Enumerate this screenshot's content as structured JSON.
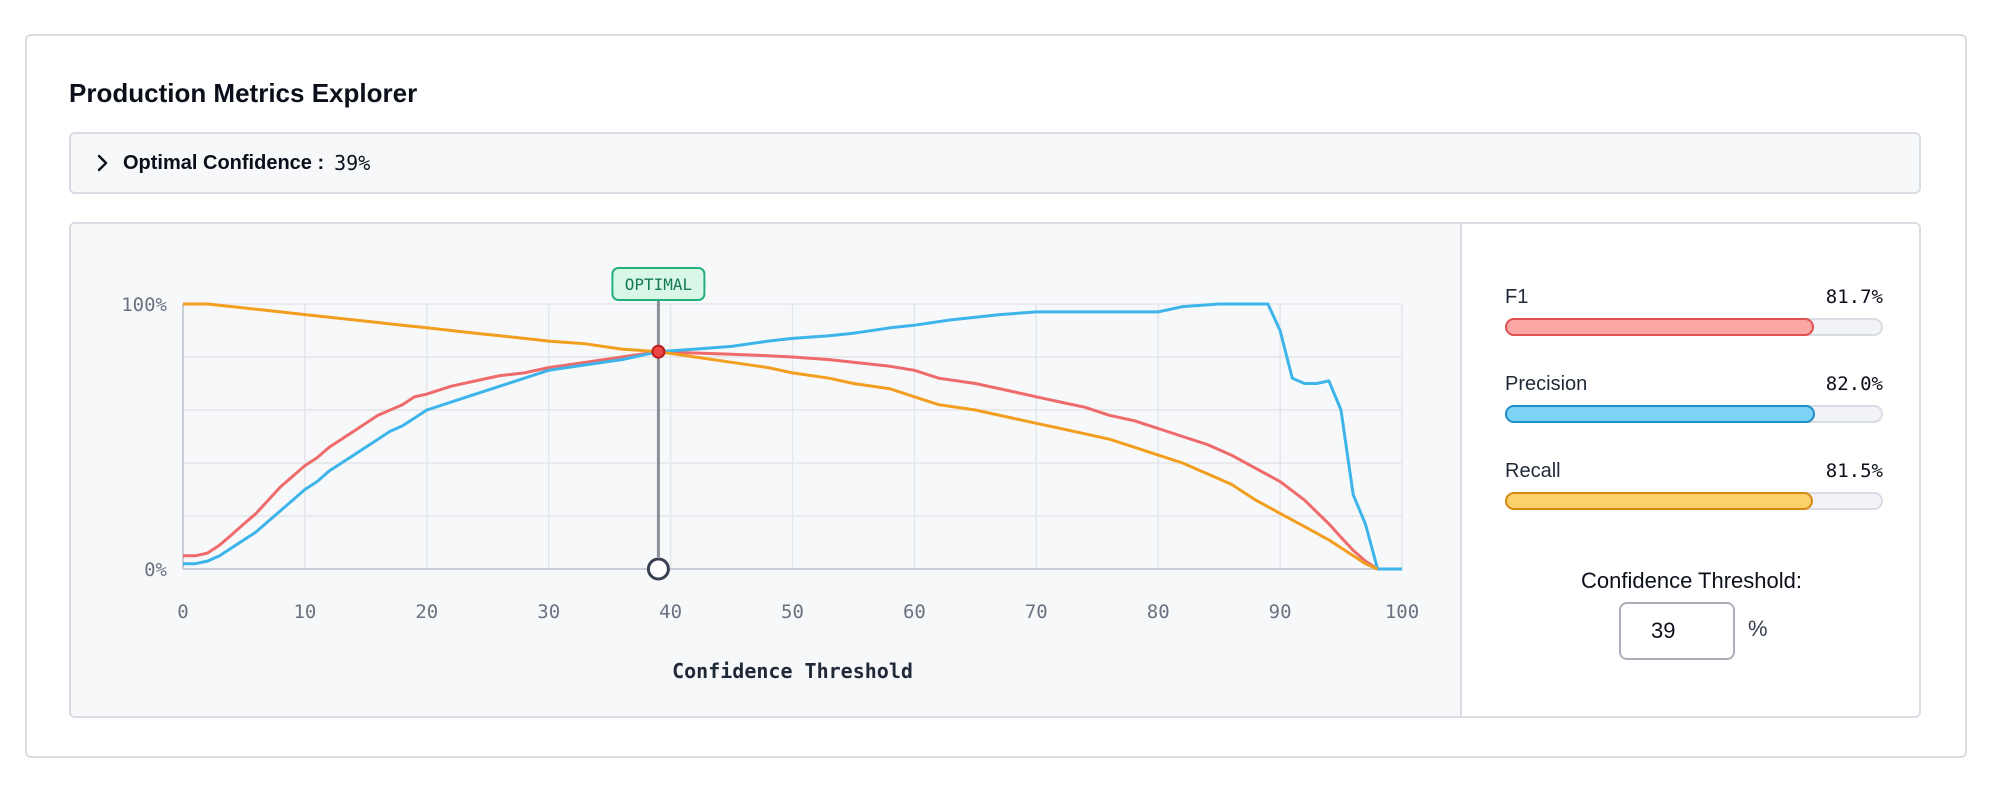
{
  "header": {
    "title": "Production Metrics Explorer"
  },
  "summary": {
    "label": "Optimal Confidence :",
    "value": "39%",
    "icon": "chevron-right-icon"
  },
  "chart_data": {
    "type": "line",
    "xlabel": "Confidence Threshold",
    "ylabel": "",
    "x_ticks": [
      "0",
      "10",
      "20",
      "30",
      "40",
      "50",
      "60",
      "70",
      "80",
      "90",
      "100"
    ],
    "y_ticks": [
      "0%",
      "100%"
    ],
    "xlim": [
      0,
      100
    ],
    "ylim": [
      0,
      1
    ],
    "optimal_label": "OPTIMAL",
    "optimal_x": 39,
    "optimal_y": 0.82,
    "series": [
      {
        "key": "f1",
        "color": "#ef6b6b",
        "points": [
          [
            0,
            0.05
          ],
          [
            1,
            0.05
          ],
          [
            2,
            0.06
          ],
          [
            3,
            0.09
          ],
          [
            4,
            0.13
          ],
          [
            5,
            0.17
          ],
          [
            6,
            0.21
          ],
          [
            7,
            0.26
          ],
          [
            8,
            0.31
          ],
          [
            9,
            0.35
          ],
          [
            10,
            0.39
          ],
          [
            11,
            0.42
          ],
          [
            12,
            0.46
          ],
          [
            13,
            0.49
          ],
          [
            14,
            0.52
          ],
          [
            15,
            0.55
          ],
          [
            16,
            0.58
          ],
          [
            17,
            0.6
          ],
          [
            18,
            0.62
          ],
          [
            19,
            0.65
          ],
          [
            20,
            0.66
          ],
          [
            22,
            0.69
          ],
          [
            24,
            0.71
          ],
          [
            26,
            0.73
          ],
          [
            28,
            0.74
          ],
          [
            30,
            0.76
          ],
          [
            33,
            0.78
          ],
          [
            36,
            0.8
          ],
          [
            39,
            0.82
          ],
          [
            42,
            0.815
          ],
          [
            45,
            0.81
          ],
          [
            48,
            0.805
          ],
          [
            50,
            0.8
          ],
          [
            53,
            0.79
          ],
          [
            55,
            0.78
          ],
          [
            58,
            0.765
          ],
          [
            60,
            0.75
          ],
          [
            62,
            0.72
          ],
          [
            65,
            0.7
          ],
          [
            68,
            0.67
          ],
          [
            70,
            0.65
          ],
          [
            72,
            0.63
          ],
          [
            74,
            0.61
          ],
          [
            76,
            0.58
          ],
          [
            78,
            0.56
          ],
          [
            80,
            0.53
          ],
          [
            82,
            0.5
          ],
          [
            84,
            0.47
          ],
          [
            86,
            0.43
          ],
          [
            88,
            0.38
          ],
          [
            90,
            0.33
          ],
          [
            92,
            0.26
          ],
          [
            94,
            0.17
          ],
          [
            95,
            0.12
          ],
          [
            96,
            0.07
          ],
          [
            97,
            0.03
          ],
          [
            98,
            0.0
          ]
        ]
      },
      {
        "key": "precision",
        "color": "#3db5ea",
        "points": [
          [
            0,
            0.02
          ],
          [
            1,
            0.02
          ],
          [
            2,
            0.03
          ],
          [
            3,
            0.05
          ],
          [
            4,
            0.08
          ],
          [
            5,
            0.11
          ],
          [
            6,
            0.14
          ],
          [
            7,
            0.18
          ],
          [
            8,
            0.22
          ],
          [
            9,
            0.26
          ],
          [
            10,
            0.3
          ],
          [
            11,
            0.33
          ],
          [
            12,
            0.37
          ],
          [
            13,
            0.4
          ],
          [
            14,
            0.43
          ],
          [
            15,
            0.46
          ],
          [
            16,
            0.49
          ],
          [
            17,
            0.52
          ],
          [
            18,
            0.54
          ],
          [
            19,
            0.57
          ],
          [
            20,
            0.6
          ],
          [
            22,
            0.63
          ],
          [
            24,
            0.66
          ],
          [
            26,
            0.69
          ],
          [
            28,
            0.72
          ],
          [
            30,
            0.75
          ],
          [
            33,
            0.77
          ],
          [
            36,
            0.79
          ],
          [
            39,
            0.82
          ],
          [
            42,
            0.83
          ],
          [
            45,
            0.84
          ],
          [
            48,
            0.86
          ],
          [
            50,
            0.87
          ],
          [
            53,
            0.88
          ],
          [
            55,
            0.89
          ],
          [
            58,
            0.91
          ],
          [
            60,
            0.92
          ],
          [
            63,
            0.94
          ],
          [
            65,
            0.95
          ],
          [
            67,
            0.96
          ],
          [
            70,
            0.97
          ],
          [
            75,
            0.97
          ],
          [
            80,
            0.97
          ],
          [
            82,
            0.99
          ],
          [
            85,
            1.0
          ],
          [
            88,
            1.0
          ],
          [
            89,
            1.0
          ],
          [
            90,
            0.9
          ],
          [
            91,
            0.72
          ],
          [
            92,
            0.7
          ],
          [
            93,
            0.7
          ],
          [
            94,
            0.71
          ],
          [
            95,
            0.6
          ],
          [
            96,
            0.28
          ],
          [
            97,
            0.17
          ],
          [
            98,
            0.0
          ],
          [
            100,
            0.0
          ]
        ]
      },
      {
        "key": "recall",
        "color": "#f29e1f",
        "points": [
          [
            0,
            1.0
          ],
          [
            2,
            1.0
          ],
          [
            4,
            0.99
          ],
          [
            6,
            0.98
          ],
          [
            8,
            0.97
          ],
          [
            10,
            0.96
          ],
          [
            12,
            0.95
          ],
          [
            14,
            0.94
          ],
          [
            16,
            0.93
          ],
          [
            18,
            0.92
          ],
          [
            20,
            0.91
          ],
          [
            22,
            0.9
          ],
          [
            24,
            0.89
          ],
          [
            26,
            0.88
          ],
          [
            28,
            0.87
          ],
          [
            30,
            0.86
          ],
          [
            33,
            0.85
          ],
          [
            36,
            0.83
          ],
          [
            39,
            0.82
          ],
          [
            42,
            0.8
          ],
          [
            45,
            0.78
          ],
          [
            48,
            0.76
          ],
          [
            50,
            0.74
          ],
          [
            53,
            0.72
          ],
          [
            55,
            0.7
          ],
          [
            58,
            0.68
          ],
          [
            60,
            0.65
          ],
          [
            62,
            0.62
          ],
          [
            65,
            0.6
          ],
          [
            68,
            0.57
          ],
          [
            70,
            0.55
          ],
          [
            72,
            0.53
          ],
          [
            74,
            0.51
          ],
          [
            76,
            0.49
          ],
          [
            78,
            0.46
          ],
          [
            80,
            0.43
          ],
          [
            82,
            0.4
          ],
          [
            84,
            0.36
          ],
          [
            86,
            0.32
          ],
          [
            88,
            0.26
          ],
          [
            90,
            0.21
          ],
          [
            92,
            0.16
          ],
          [
            94,
            0.11
          ],
          [
            96,
            0.05
          ],
          [
            97,
            0.02
          ],
          [
            98,
            0.0
          ]
        ]
      }
    ]
  },
  "metrics": [
    {
      "name": "F1",
      "value": "81.7%",
      "fraction": 0.817,
      "fill": "#fca5a5",
      "border": "#e05252"
    },
    {
      "name": "Precision",
      "value": "82.0%",
      "fraction": 0.82,
      "fill": "#7dd3f5",
      "border": "#1d8ec8"
    },
    {
      "name": "Recall",
      "value": "81.5%",
      "fraction": 0.815,
      "fill": "#fcd16b",
      "border": "#d68a12"
    }
  ],
  "threshold": {
    "label": "Confidence Threshold:",
    "value": "39",
    "unit": "%"
  }
}
